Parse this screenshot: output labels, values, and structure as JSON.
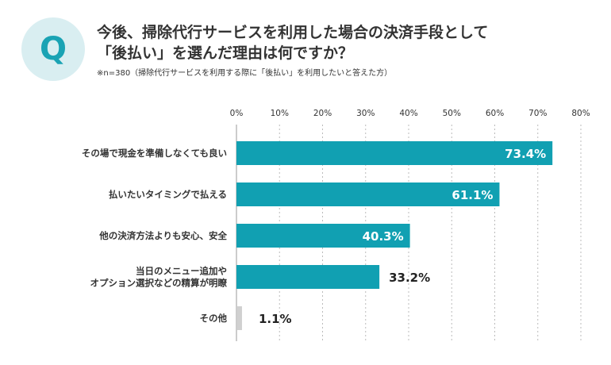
{
  "header": {
    "q_mark": "Q",
    "title_line1": "今後、掃除代行サービスを利用した場合の決済手段として",
    "title_line2": "「後払い」を選んだ理由は何ですか？",
    "note": "※n=380（掃除代行サービスを利用する際に「後払い」を利用したいと答えた方）"
  },
  "colors": {
    "accent": "#11a0b2",
    "minor_bar": "#d0d0d0",
    "circle_bg": "#d9eef1",
    "grid": "#bbbbbb"
  },
  "chart_data": {
    "type": "bar",
    "orientation": "horizontal",
    "categories": [
      [
        "その場で現金を準備しなくても良い"
      ],
      [
        "払いたいタイミングで払える"
      ],
      [
        "他の決済方法よりも安心、安全"
      ],
      [
        "当日のメニュー追加や",
        "オプション選択などの精算が明瞭"
      ],
      [
        "その他"
      ]
    ],
    "values": [
      73.4,
      61.1,
      40.3,
      33.2,
      1.1
    ],
    "value_labels": [
      "73.4%",
      "61.1%",
      "40.3%",
      "33.2%",
      "1.1%"
    ],
    "xlim": [
      0,
      80
    ],
    "ticks": [
      0,
      10,
      20,
      30,
      40,
      50,
      60,
      70,
      80
    ],
    "tick_labels": [
      "0%",
      "10%",
      "20%",
      "30%",
      "40%",
      "50%",
      "60%",
      "70%",
      "80%"
    ],
    "grid": "vertical-dashed",
    "legend": "none"
  }
}
